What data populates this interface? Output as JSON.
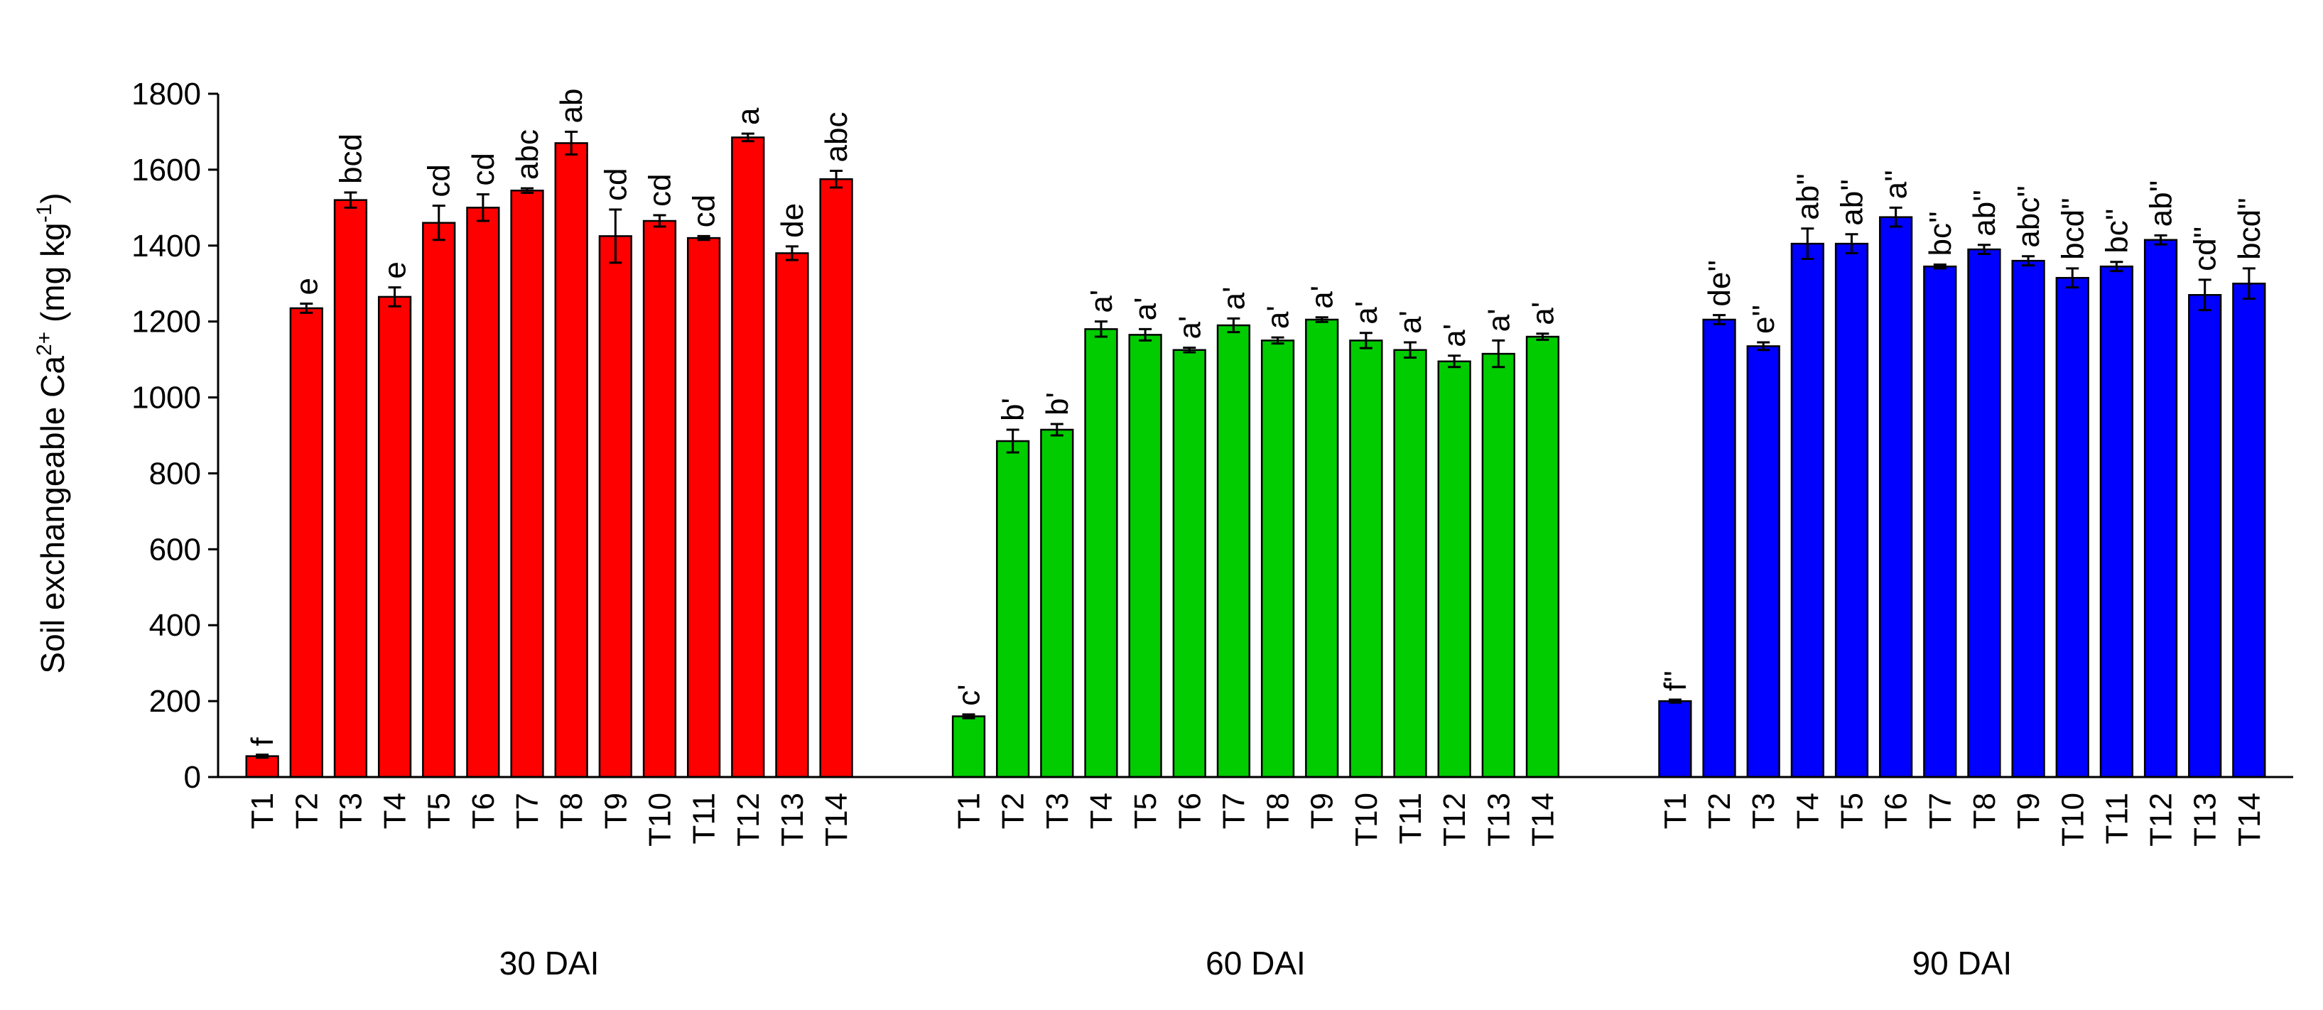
{
  "chart_data": {
    "type": "bar",
    "ylabel": {
      "prefix": "Soil exchangeable Ca",
      "sup1": "2+",
      "middle": " (mg kg",
      "sup2": "-1",
      "suffix": ")"
    },
    "ylim": [
      0,
      1800
    ],
    "yticks": [
      0,
      200,
      400,
      600,
      800,
      1000,
      1200,
      1400,
      1600,
      1800
    ],
    "grid": false,
    "legend": "none",
    "categories": [
      "T1",
      "T2",
      "T3",
      "T4",
      "T5",
      "T6",
      "T7",
      "T8",
      "T9",
      "T10",
      "T11",
      "T12",
      "T13",
      "T14"
    ],
    "groups": [
      {
        "name": "30 DAI",
        "color": "#ff0000",
        "values": [
          55,
          1235,
          1520,
          1265,
          1460,
          1500,
          1545,
          1670,
          1425,
          1465,
          1420,
          1685,
          1380,
          1575
        ],
        "errors": [
          4,
          12,
          20,
          25,
          45,
          35,
          6,
          30,
          70,
          15,
          5,
          10,
          18,
          22
        ],
        "labels": [
          "f",
          "e",
          "bcd",
          "e",
          "cd",
          "cd",
          "abc",
          "ab",
          "cd",
          "cd",
          "cd",
          "a",
          "de",
          "abc"
        ]
      },
      {
        "name": "60 DAI",
        "color": "#00cc00",
        "values": [
          160,
          885,
          915,
          1180,
          1165,
          1125,
          1190,
          1150,
          1205,
          1150,
          1125,
          1095,
          1115,
          1160
        ],
        "errors": [
          5,
          30,
          15,
          20,
          15,
          6,
          18,
          8,
          6,
          20,
          20,
          15,
          35,
          8
        ],
        "labels": [
          "c'",
          "b'",
          "b'",
          "a'",
          "a'",
          "a'",
          "a'",
          "a'",
          "a'",
          "a'",
          "a'",
          "a'",
          "a'",
          "a'"
        ]
      },
      {
        "name": "90 DAI",
        "color": "#0000ff",
        "values": [
          200,
          1205,
          1135,
          1405,
          1405,
          1475,
          1345,
          1390,
          1360,
          1315,
          1345,
          1415,
          1270,
          1300
        ],
        "errors": [
          4,
          12,
          10,
          40,
          25,
          25,
          5,
          12,
          12,
          25,
          12,
          12,
          40,
          40
        ],
        "labels": [
          "f''",
          "de''",
          "e''",
          "ab''",
          "ab''",
          "a''",
          "bc''",
          "ab''",
          "abc''",
          "bcd''",
          "bc''",
          "ab''",
          "cd''",
          "bcd''"
        ]
      }
    ]
  }
}
